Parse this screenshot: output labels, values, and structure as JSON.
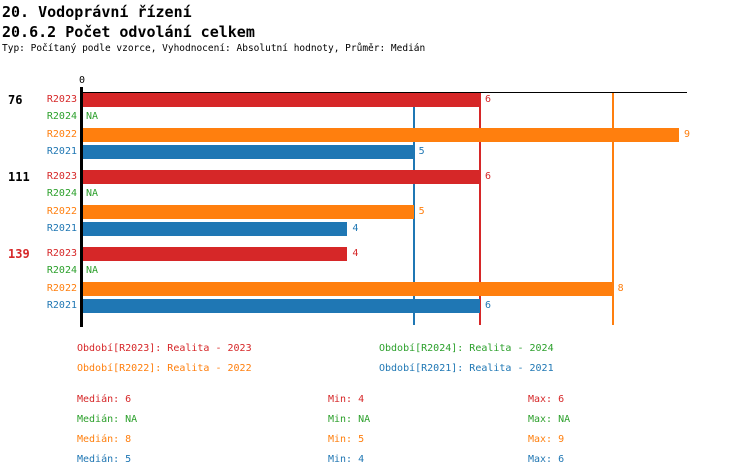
{
  "header": {
    "title1": "20. Vodoprávní řízení",
    "title2": "20.6.2 Počet odvolání celkem",
    "subtitle": "Typ: Počítaný podle vzorce, Vyhodnocení: Absolutní hodnoty, Průměr: Medián"
  },
  "chart_data": {
    "type": "bar",
    "orientation": "horizontal",
    "title": "20.6.2 Počet odvolání celkem",
    "xlim": [
      0,
      9.1
    ],
    "grid": false,
    "x_ticks": [
      {
        "value": 0,
        "label": "0"
      }
    ],
    "na_label": "NA",
    "series_colors": {
      "R2023": "#d62728",
      "R2024": "#2ca02c",
      "R2022": "#ff7f0e",
      "R2021": "#1f77b4"
    },
    "axis_color": "#000000",
    "groups": [
      {
        "label": "76",
        "label_color": "#000000",
        "bars": [
          {
            "series": "R2023",
            "value": 6
          },
          {
            "series": "R2024",
            "value": "NA"
          },
          {
            "series": "R2022",
            "value": 9
          },
          {
            "series": "R2021",
            "value": 5
          }
        ]
      },
      {
        "label": "111",
        "label_color": "#000000",
        "bars": [
          {
            "series": "R2023",
            "value": 6
          },
          {
            "series": "R2024",
            "value": "NA"
          },
          {
            "series": "R2022",
            "value": 5
          },
          {
            "series": "R2021",
            "value": 4
          }
        ]
      },
      {
        "label": "139",
        "label_color": "#d62728",
        "bars": [
          {
            "series": "R2023",
            "value": 4
          },
          {
            "series": "R2024",
            "value": "NA"
          },
          {
            "series": "R2022",
            "value": 8
          },
          {
            "series": "R2021",
            "value": 6
          }
        ]
      }
    ],
    "median_lines": [
      {
        "series": "R2023",
        "value": 6
      },
      {
        "series": "R2022",
        "value": 8
      },
      {
        "series": "R2021",
        "value": 5
      }
    ]
  },
  "legend": {
    "items": [
      {
        "series": "R2023",
        "text": "Období[R2023]: Realita - 2023"
      },
      {
        "series": "R2024",
        "text": "Období[R2024]: Realita - 2024"
      },
      {
        "series": "R2022",
        "text": "Období[R2022]: Realita - 2022"
      },
      {
        "series": "R2021",
        "text": "Období[R2021]: Realita - 2021"
      }
    ]
  },
  "stats": {
    "median_label": "Medián",
    "min_label": "Min",
    "max_label": "Max",
    "rows": [
      {
        "series": "R2023",
        "median": "6",
        "min": "4",
        "max": "6"
      },
      {
        "series": "R2024",
        "median": "NA",
        "min": "NA",
        "max": "NA"
      },
      {
        "series": "R2022",
        "median": "8",
        "min": "5",
        "max": "9"
      },
      {
        "series": "R2021",
        "median": "5",
        "min": "4",
        "max": "6"
      }
    ]
  }
}
